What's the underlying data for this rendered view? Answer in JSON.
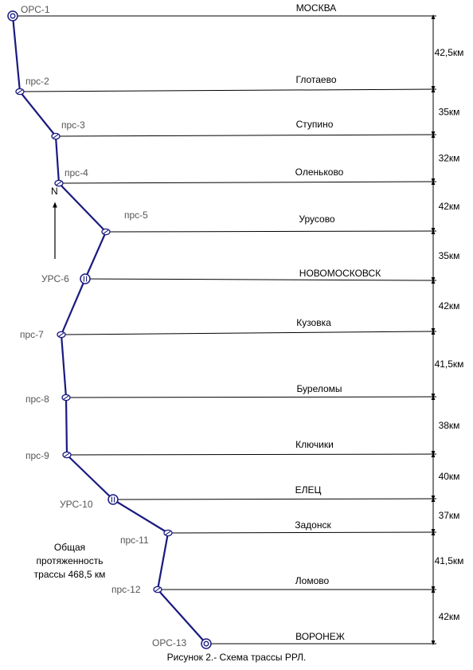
{
  "stations": [
    {
      "code": "ОРС-1",
      "city": "МОСКВА",
      "symbol": "double-circle"
    },
    {
      "code": "прс-2",
      "city": "Глотаево",
      "symbol": "slash-circle"
    },
    {
      "code": "прс-3",
      "city": "Ступино",
      "symbol": "slash-circle"
    },
    {
      "code": "прс-4",
      "city": "Оленьково",
      "symbol": "slash-circle"
    },
    {
      "code": "прс-5",
      "city": "Урусово",
      "symbol": "slash-circle"
    },
    {
      "code": "УРС-6",
      "city": "НОВОМОСКОВСК",
      "symbol": "bar-circle"
    },
    {
      "code": "прс-7",
      "city": "Кузовка",
      "symbol": "slash-circle"
    },
    {
      "code": "прс-8",
      "city": "Буреломы",
      "symbol": "slash-circle"
    },
    {
      "code": "прс-9",
      "city": "Ключики",
      "symbol": "slash-circle"
    },
    {
      "code": "УРС-10",
      "city": "ЕЛЕЦ",
      "symbol": "bar-circle"
    },
    {
      "code": "прс-11",
      "city": "Задонск",
      "symbol": "slash-circle"
    },
    {
      "code": "прс-12",
      "city": "Ломово",
      "symbol": "slash-circle"
    },
    {
      "code": "ОРС-13",
      "city": "ВОРОНЕЖ",
      "symbol": "double-circle"
    }
  ],
  "distances": [
    "42,5км",
    "35км",
    "32км",
    "42км",
    "35км",
    "42км",
    "41,5км",
    "38км",
    "40км",
    "37км",
    "41,5км",
    "42км"
  ],
  "north_label": "N",
  "total_note": [
    "Общая",
    "протяженность",
    "трассы 468,5 км"
  ],
  "caption": "Рисунок 2.- Схема трассы РРЛ.",
  "colors": {
    "route": "#1a1a80",
    "line": "#000000",
    "station_label": "#555555"
  }
}
